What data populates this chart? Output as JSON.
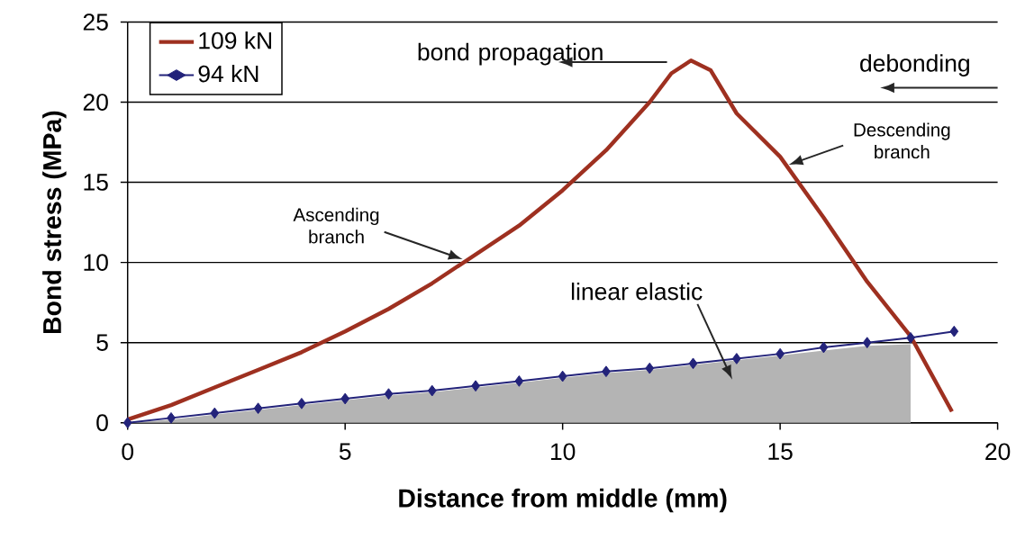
{
  "chart_data": {
    "type": "line",
    "xlabel": "Distance from middle (mm)",
    "ylabel": "Bond stress (MPa)",
    "xlim": [
      0,
      20
    ],
    "ylim": [
      0,
      25
    ],
    "xticks": [
      0,
      5,
      10,
      15,
      20
    ],
    "yticks": [
      0,
      5,
      10,
      15,
      20,
      25
    ],
    "grid": "y",
    "legend": "top left",
    "line_style": "solid",
    "series": [
      {
        "name": "109 kN",
        "color": "#9e3020",
        "marker": "none",
        "x": [
          0,
          1,
          2,
          3,
          4,
          5,
          6,
          7,
          8,
          9,
          10,
          11,
          12,
          12.5,
          12.95,
          13.4,
          14,
          15,
          16,
          17,
          18,
          18.95
        ],
        "values": [
          0.2,
          1.1,
          2.2,
          3.3,
          4.4,
          5.7,
          7.1,
          8.7,
          10.5,
          12.3,
          14.5,
          17,
          20,
          21.8,
          22.6,
          22,
          19.3,
          16.6,
          12.8,
          8.8,
          5.4,
          0.7
        ]
      },
      {
        "name": "94 kN",
        "color": "#23237a",
        "marker": "diamond",
        "x": [
          0,
          1,
          2,
          3,
          4,
          5,
          6,
          7,
          8,
          9,
          10,
          11,
          12,
          13,
          14,
          15,
          16,
          17,
          18,
          19
        ],
        "values": [
          0,
          0.3,
          0.6,
          0.9,
          1.2,
          1.5,
          1.8,
          2.0,
          2.3,
          2.6,
          2.9,
          3.2,
          3.4,
          3.7,
          4.0,
          4.3,
          4.7,
          5.0,
          5.3,
          5.7
        ]
      },
      {
        "type": "area",
        "color": "#b4b4b4",
        "x": [
          0,
          1,
          2,
          3,
          4,
          5,
          6,
          7,
          8,
          9,
          10,
          11,
          12,
          13,
          14,
          15,
          16,
          17,
          18
        ],
        "values": [
          0,
          0.2,
          0.5,
          0.8,
          1.1,
          1.4,
          1.7,
          1.9,
          2.2,
          2.5,
          2.8,
          3.1,
          3.3,
          3.6,
          3.9,
          4.2,
          4.5,
          4.8,
          4.9
        ]
      }
    ],
    "annotations": [
      "bond propagation",
      "debonding",
      "Ascending branch",
      "Descending branch",
      "linear elastic"
    ]
  }
}
